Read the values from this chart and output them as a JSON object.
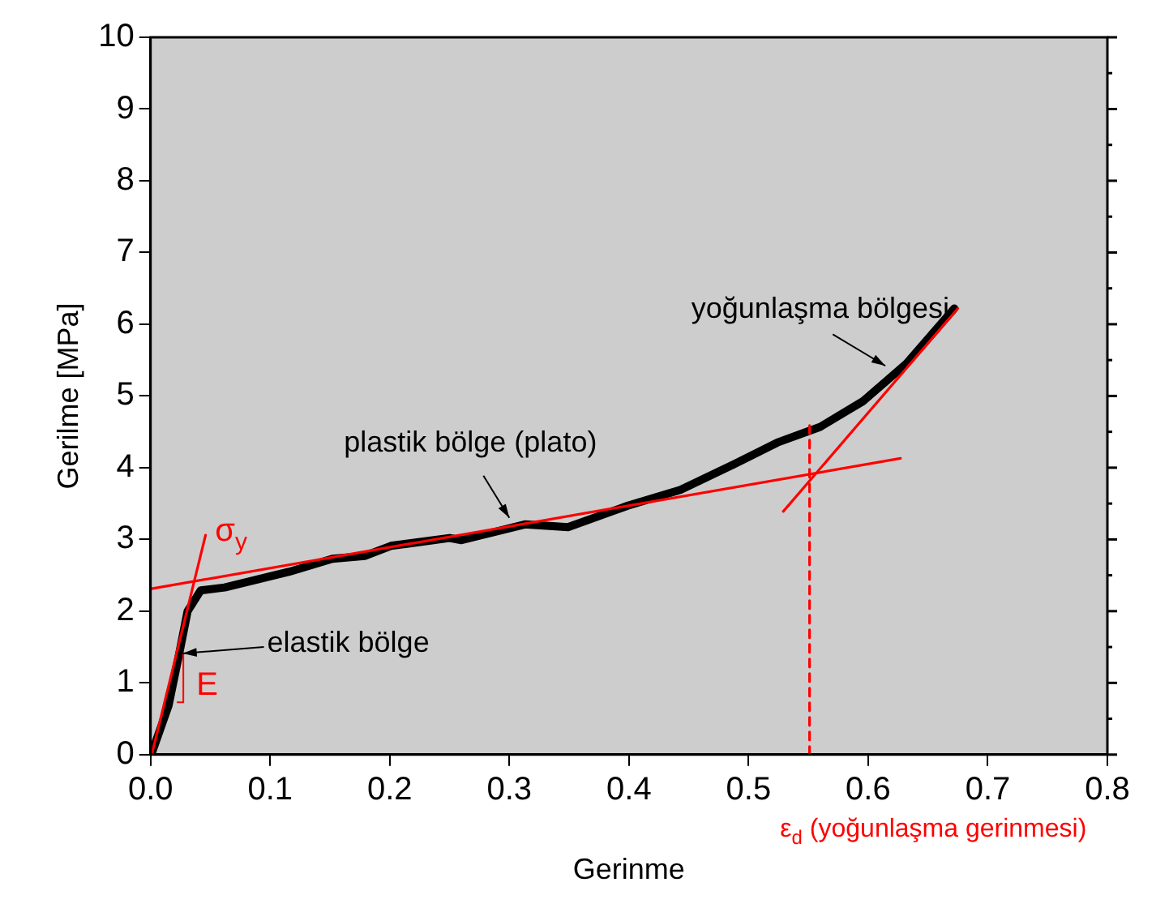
{
  "chart_data": {
    "type": "line",
    "xlabel": "Gerinme",
    "ylabel": "Gerilme [MPa]",
    "xlim": [
      0,
      0.8
    ],
    "xticks": [
      {
        "value": 0,
        "label": "0.0"
      },
      0.1,
      0.2,
      0.3,
      0.4,
      0.5,
      0.6,
      0.7,
      0.8
    ],
    "ylim": [
      0,
      10
    ],
    "yticks": [
      0,
      1,
      2,
      3,
      4,
      5,
      6,
      7,
      8,
      9,
      10
    ],
    "grid": false,
    "legend": false,
    "marker": "none",
    "series": [
      {
        "color": "#000000",
        "x": [
          0.001,
          0.015,
          0.024,
          0.031,
          0.042,
          0.062,
          0.116,
          0.152,
          0.179,
          0.201,
          0.25,
          0.26,
          0.313,
          0.349,
          0.399,
          0.443,
          0.488,
          0.524,
          0.56,
          0.596,
          0.632,
          0.672
        ],
        "values": [
          0.02,
          0.68,
          1.41,
          2.0,
          2.29,
          2.33,
          2.55,
          2.73,
          2.77,
          2.91,
          3.02,
          2.99,
          3.21,
          3.17,
          3.47,
          3.69,
          4.05,
          4.35,
          4.57,
          4.93,
          5.45,
          6.22
        ]
      },
      {
        "color": "#ff0000",
        "x": [
          0.001,
          0.046
        ],
        "values": [
          0,
          3.06
        ]
      },
      {
        "color": "#ff0000",
        "x": [
          0,
          0.627
        ],
        "values": [
          2.31,
          4.13
        ]
      },
      {
        "color": "#ff0000",
        "x": [
          0.529,
          0.675
        ],
        "values": [
          3.39,
          6.22
        ]
      },
      {
        "color": "#ff0000",
        "line_style": "dashed",
        "x": [
          0.551,
          0.551
        ],
        "values": [
          0,
          4.64
        ]
      }
    ],
    "annotations": [
      {
        "text": "σ$_{y}$",
        "x": 0.035,
        "y": 2.29
      },
      {
        "text": "E",
        "x": 0.022,
        "y": 1.0
      },
      {
        "text": "elastik bölge",
        "x": 0.027,
        "y": 1.41
      },
      {
        "text": "plastik bölge (plato)",
        "x": 0.3,
        "y": 3.3
      },
      "yoğunlaşma bölgesi",
      "ε$_{d}$ (yoğunlaşma gerinmesi)"
    ]
  }
}
